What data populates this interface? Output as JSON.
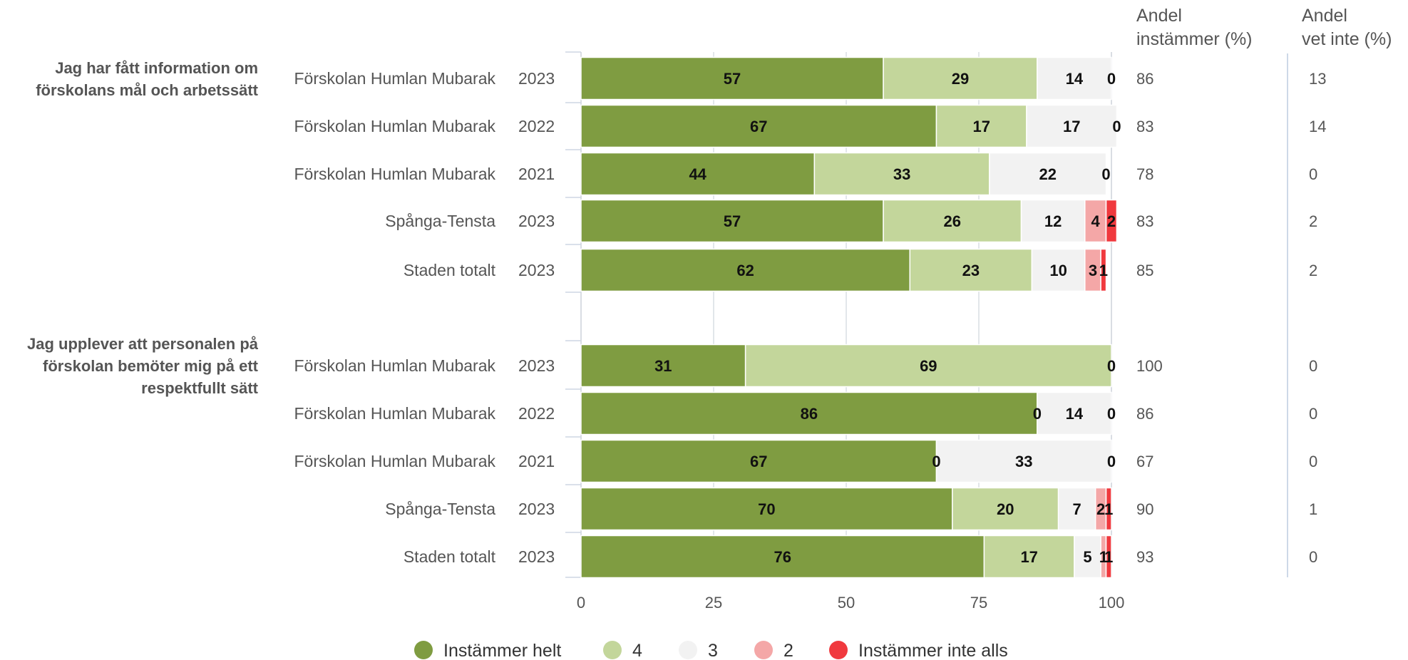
{
  "chart_data": {
    "type": "bar",
    "orientation": "horizontal",
    "stacked": true,
    "xlim": [
      0,
      100
    ],
    "xticks": [
      "0",
      "25",
      "50",
      "75",
      "100"
    ],
    "grid": true,
    "legend_position": "bottom",
    "series_meta": [
      {
        "name": "Instämmer helt",
        "color": "#7f9c41"
      },
      {
        "name": "4",
        "color": "#c3d69b"
      },
      {
        "name": "3",
        "color": "#f2f2f2"
      },
      {
        "name": "2",
        "color": "#f4a7a7"
      },
      {
        "name": "Instämmer inte alls",
        "color": "#f0393e"
      }
    ],
    "columns": {
      "agree_header_line1": "Andel",
      "agree_header_line2": "instämmer (%)",
      "dontknow_header_line1": "Andel",
      "dontknow_header_line2": "vet inte (%)"
    },
    "groups": [
      {
        "title_lines": [
          "Jag har fått information om",
          "förskolans mål och arbetssätt"
        ],
        "rows": [
          {
            "name": "Förskolan Humlan Mubarak",
            "year": "2023",
            "values": [
              57,
              29,
              14,
              0,
              0
            ],
            "labels": [
              "57",
              "29",
              "14",
              "0",
              ""
            ],
            "agree": "86",
            "dontknow": "13"
          },
          {
            "name": "Förskolan Humlan Mubarak",
            "year": "2022",
            "values": [
              67,
              17,
              17,
              0,
              0
            ],
            "labels": [
              "67",
              "17",
              "17",
              "0",
              ""
            ],
            "agree": "83",
            "dontknow": "14"
          },
          {
            "name": "Förskolan Humlan Mubarak",
            "year": "2021",
            "values": [
              44,
              33,
              22,
              0,
              0
            ],
            "labels": [
              "44",
              "33",
              "22",
              "0",
              ""
            ],
            "agree": "78",
            "dontknow": "0"
          },
          {
            "name": "Spånga-Tensta",
            "year": "2023",
            "values": [
              57,
              26,
              12,
              4,
              2
            ],
            "labels": [
              "57",
              "26",
              "12",
              "4",
              "2"
            ],
            "agree": "83",
            "dontknow": "2"
          },
          {
            "name": "Staden totalt",
            "year": "2023",
            "values": [
              62,
              23,
              10,
              3,
              1
            ],
            "labels": [
              "62",
              "23",
              "10",
              "3",
              "1"
            ],
            "agree": "85",
            "dontknow": "2"
          }
        ]
      },
      {
        "title_lines": [
          "Jag upplever att personalen på",
          "förskolan bemöter mig på ett",
          "respektfullt sätt"
        ],
        "rows": [
          {
            "name": "Förskolan Humlan Mubarak",
            "year": "2023",
            "values": [
              31,
              69,
              0,
              0,
              0
            ],
            "labels": [
              "31",
              "69",
              "0",
              "",
              ""
            ],
            "agree": "100",
            "dontknow": "0"
          },
          {
            "name": "Förskolan Humlan Mubarak",
            "year": "2022",
            "values": [
              86,
              0,
              14,
              0,
              0
            ],
            "labels": [
              "86",
              "0",
              "14",
              "0",
              ""
            ],
            "agree": "86",
            "dontknow": "0"
          },
          {
            "name": "Förskolan Humlan Mubarak",
            "year": "2021",
            "values": [
              67,
              0,
              33,
              0,
              0
            ],
            "labels": [
              "67",
              "0",
              "33",
              "0",
              ""
            ],
            "agree": "67",
            "dontknow": "0"
          },
          {
            "name": "Spånga-Tensta",
            "year": "2023",
            "values": [
              70,
              20,
              7,
              2,
              1
            ],
            "labels": [
              "70",
              "20",
              "7",
              "2",
              "1"
            ],
            "agree": "90",
            "dontknow": "1"
          },
          {
            "name": "Staden totalt",
            "year": "2023",
            "values": [
              76,
              17,
              5,
              1,
              1
            ],
            "labels": [
              "76",
              "17",
              "5",
              "1",
              "1"
            ],
            "agree": "93",
            "dontknow": "0"
          }
        ]
      }
    ]
  }
}
